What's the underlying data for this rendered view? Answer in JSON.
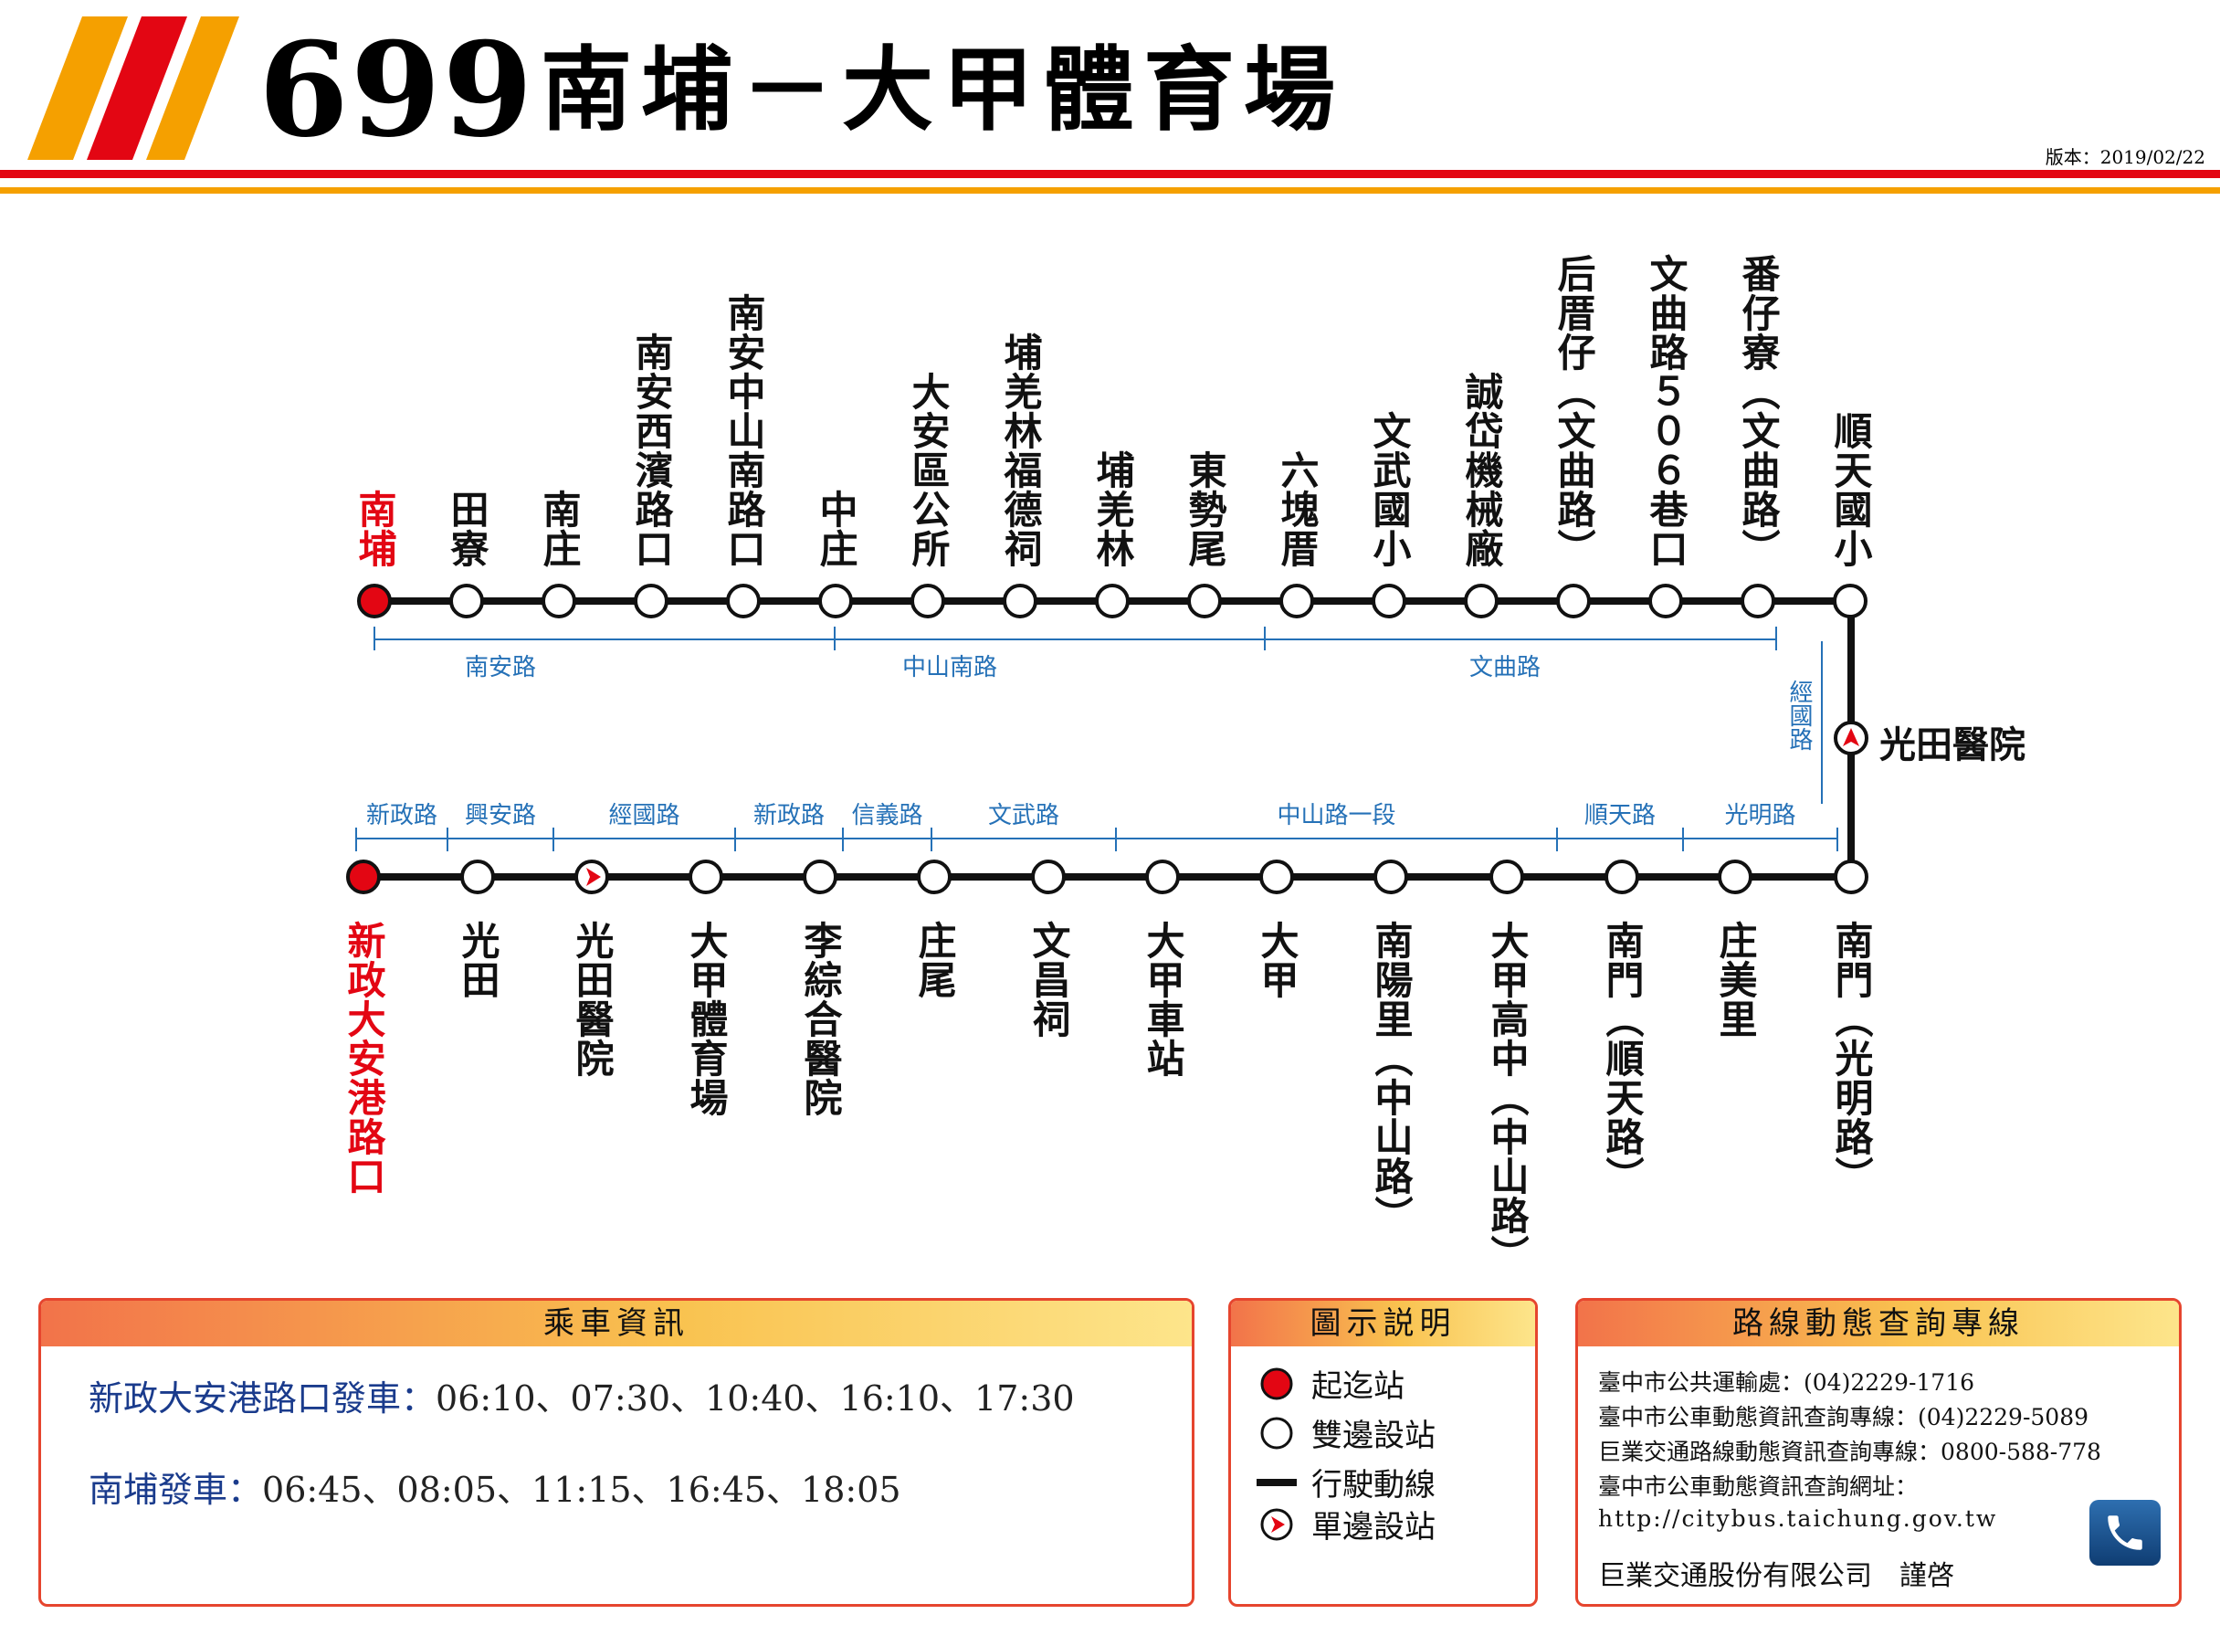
{
  "header": {
    "route_number": "699",
    "route_name": "南埔－大甲體育場",
    "version": "版本：2019/02/22"
  },
  "top_stops": [
    "南埔",
    "田寮",
    "南庄",
    "南安西濱路口",
    "南安中山南路口",
    "中庄",
    "大安區公所",
    "埔羌林福德祠",
    "埔羌林",
    "東勢尾",
    "六塊厝",
    "文武國小",
    "誠岱機械廠",
    "后厝仔（文曲路）",
    "文曲路５０６巷口",
    "番仔寮（文曲路）",
    "順天國小"
  ],
  "top_roads": [
    "南安路",
    "中山南路",
    "文曲路"
  ],
  "side_road": "經國路",
  "side_stop": "光田醫院",
  "bottom_stops": [
    "新政大安港路口",
    "光田",
    "光田醫院",
    "大甲體育場",
    "李綜合醫院",
    "庄尾",
    "文昌祠",
    "大甲車站",
    "大甲",
    "南陽里（中山路）",
    "大甲高中（中山路）",
    "南門（順天路）",
    "庄美里",
    "南門（光明路）"
  ],
  "bottom_roads": [
    "新政路",
    "興安路",
    "經國路",
    "新政路",
    "信義路",
    "文武路",
    "中山路一段",
    "順天路",
    "光明路"
  ],
  "info": {
    "title": "乘車資訊",
    "rows": [
      {
        "label": "新政大安港路口發車：",
        "times": "06:10、07:30、10:40、16:10、17:30"
      },
      {
        "label": "南埔發車：",
        "times": "06:45、08:05、11:15、16:45、18:05"
      }
    ]
  },
  "legend": {
    "title": "圖示説明",
    "items": [
      {
        "icon": "terminal-stop-icon",
        "label": "起迄站"
      },
      {
        "icon": "two-way-stop-icon",
        "label": "雙邊設站"
      },
      {
        "icon": "route-line-icon",
        "label": "行駛動線"
      },
      {
        "icon": "one-way-stop-icon",
        "label": "單邊設站"
      }
    ]
  },
  "contact": {
    "title": "路線動態查詢專線",
    "lines": [
      "臺中市公共運輸處：(04)2229-1716",
      "臺中市公車動態資訊查詢專線：(04)2229-5089",
      "巨業交通路線動態資訊查詢專線：0800-588-778",
      "臺中市公車動態資訊查詢網址：",
      "http://citybus.taichung.gov.tw"
    ],
    "company": "巨業交通股份有限公司　謹啓",
    "icon": "phone-icon"
  },
  "colors": {
    "terminal": "#e30613",
    "road_label": "#2571b7",
    "header_red": "#e30613",
    "header_orange": "#f5a000"
  }
}
